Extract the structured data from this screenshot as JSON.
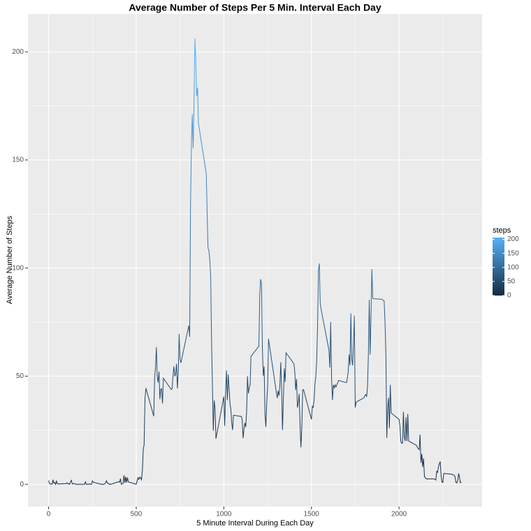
{
  "chart_data": {
    "type": "line",
    "title": "Average Number of Steps Per 5 Min. Interval Each Day",
    "x_label": "5 Minute Interval During Each Day",
    "y_label": "Average Number of Steps",
    "x": [
      0,
      5,
      10,
      15,
      20,
      25,
      30,
      35,
      40,
      45,
      50,
      55,
      100,
      105,
      110,
      115,
      120,
      125,
      130,
      135,
      140,
      145,
      150,
      155,
      200,
      205,
      210,
      215,
      220,
      225,
      230,
      235,
      240,
      245,
      250,
      255,
      300,
      305,
      310,
      315,
      320,
      325,
      330,
      335,
      340,
      345,
      350,
      355,
      400,
      405,
      410,
      415,
      420,
      425,
      430,
      435,
      440,
      445,
      450,
      455,
      500,
      505,
      510,
      515,
      520,
      525,
      530,
      535,
      540,
      545,
      550,
      555,
      600,
      605,
      610,
      615,
      620,
      625,
      630,
      635,
      640,
      645,
      650,
      655,
      700,
      705,
      710,
      715,
      720,
      725,
      730,
      735,
      740,
      745,
      750,
      755,
      800,
      805,
      810,
      815,
      820,
      825,
      830,
      835,
      840,
      845,
      850,
      855,
      900,
      905,
      910,
      915,
      920,
      925,
      930,
      935,
      940,
      945,
      950,
      955,
      1000,
      1005,
      1010,
      1015,
      1020,
      1025,
      1030,
      1035,
      1040,
      1045,
      1050,
      1055,
      1100,
      1105,
      1110,
      1115,
      1120,
      1125,
      1130,
      1135,
      1140,
      1145,
      1150,
      1155,
      1200,
      1205,
      1210,
      1215,
      1220,
      1225,
      1230,
      1235,
      1240,
      1245,
      1250,
      1255,
      1300,
      1305,
      1310,
      1315,
      1320,
      1325,
      1330,
      1335,
      1340,
      1345,
      1350,
      1355,
      1400,
      1405,
      1410,
      1415,
      1420,
      1425,
      1430,
      1435,
      1440,
      1445,
      1450,
      1455,
      1500,
      1505,
      1510,
      1515,
      1520,
      1525,
      1530,
      1535,
      1540,
      1545,
      1550,
      1555,
      1600,
      1605,
      1610,
      1615,
      1620,
      1625,
      1630,
      1635,
      1640,
      1645,
      1650,
      1655,
      1700,
      1705,
      1710,
      1715,
      1720,
      1725,
      1730,
      1735,
      1740,
      1745,
      1750,
      1755,
      1800,
      1805,
      1810,
      1815,
      1820,
      1825,
      1830,
      1835,
      1840,
      1845,
      1850,
      1855,
      1900,
      1905,
      1910,
      1915,
      1920,
      1925,
      1930,
      1935,
      1940,
      1945,
      1950,
      1955,
      2000,
      2005,
      2010,
      2015,
      2020,
      2025,
      2030,
      2035,
      2040,
      2045,
      2050,
      2055,
      2100,
      2105,
      2110,
      2115,
      2120,
      2125,
      2130,
      2135,
      2140,
      2145,
      2150,
      2155,
      2200,
      2205,
      2210,
      2215,
      2220,
      2225,
      2230,
      2235,
      2240,
      2245,
      2250,
      2255,
      2300,
      2305,
      2310,
      2315,
      2320,
      2325,
      2330,
      2335,
      2340,
      2345,
      2350,
      2355
    ],
    "values": [
      1.72,
      0.34,
      0.13,
      0.15,
      0.08,
      2.09,
      0.53,
      0.87,
      0,
      1.47,
      0.3,
      0.13,
      0.32,
      0.68,
      0.15,
      0.34,
      0,
      1.11,
      1.83,
      0.17,
      0.17,
      0.38,
      0.26,
      0,
      0,
      0,
      1.13,
      0,
      0,
      0.13,
      0,
      0.23,
      0,
      0,
      1.55,
      0.94,
      0,
      0,
      0,
      0,
      0.21,
      0.62,
      1.62,
      0.58,
      0.49,
      0.08,
      0,
      0,
      1.19,
      0.94,
      2.57,
      0,
      0.34,
      0.36,
      4.11,
      0.66,
      3.49,
      0.83,
      3.11,
      1.11,
      0,
      1.57,
      3,
      2.25,
      3.32,
      2.96,
      2.09,
      6.06,
      16.02,
      18.34,
      39.45,
      44.49,
      31.49,
      49.26,
      53.77,
      63.45,
      49.96,
      47.08,
      52.15,
      39.34,
      44.02,
      44.17,
      37.36,
      49.04,
      43.81,
      44.38,
      50.51,
      54.51,
      49.92,
      50.98,
      55.68,
      44.32,
      52.26,
      69.55,
      57.85,
      56.15,
      73.38,
      68.21,
      129.43,
      157.53,
      171.15,
      155.4,
      177.3,
      206.17,
      195.92,
      179.57,
      183.4,
      167.02,
      143.45,
      124.04,
      109.11,
      108.11,
      103.72,
      95.96,
      66.21,
      45.23,
      24.79,
      38.75,
      34.98,
      21.06,
      40.57,
      26.98,
      42.42,
      52.66,
      38.92,
      50.79,
      44.28,
      37.42,
      34.7,
      28.34,
      25.09,
      31.94,
      31.36,
      29.68,
      21.32,
      25.55,
      28.38,
      26.47,
      33.43,
      49.98,
      42.04,
      44.6,
      46.04,
      59.19,
      63.87,
      87.7,
      94.85,
      92.77,
      63.4,
      50.17,
      54.47,
      32.42,
      26.53,
      37.74,
      45.06,
      67.28,
      42.34,
      39.89,
      43.26,
      40.98,
      46.25,
      56.43,
      42.75,
      25.13,
      39.96,
      53.55,
      47.32,
      60.81,
      55.75,
      51.96,
      43.58,
      48.7,
      35.47,
      37.55,
      41.85,
      27.51,
      17.11,
      26.08,
      43.62,
      43.77,
      30.02,
      36.08,
      35.49,
      38.85,
      46.21,
      50,
      57,
      73,
      99,
      102.11,
      83.96,
      81,
      62,
      54,
      75.09,
      49,
      39,
      46,
      44.5,
      46,
      45,
      46,
      47,
      48,
      47,
      49,
      52,
      60,
      55,
      79,
      58,
      55,
      64,
      78,
      35.5,
      38,
      40,
      41,
      41.5,
      40.5,
      45,
      60,
      85.3,
      60,
      78,
      99.5,
      86,
      85.8,
      85.6,
      85.5,
      85,
      84.8,
      75,
      60,
      21.5,
      35,
      40,
      26,
      46,
      33,
      30,
      27,
      20,
      19,
      19,
      33.5,
      22,
      20,
      31,
      20,
      32.5,
      20,
      18,
      17,
      16.5,
      16,
      23,
      10,
      14,
      8,
      12,
      3.5,
      3,
      2.5,
      2.5,
      2.2,
      2,
      6,
      5.5,
      8,
      9.5,
      10.5,
      4,
      1,
      0.8,
      5,
      4.7,
      4.5,
      4.3,
      4.1,
      3.3,
      0.8,
      0.6,
      1.6,
      5,
      3.2,
      0.7,
      1.08
    ],
    "xlim": [
      -118,
      2474
    ],
    "ylim": [
      -10.3,
      217.5
    ],
    "xticks": [
      0,
      500,
      1000,
      1500,
      2000
    ],
    "yticks": [
      0,
      50,
      100,
      150,
      200
    ],
    "xminor": [
      250,
      750,
      1250,
      1750,
      2250
    ],
    "yminor": [
      25,
      75,
      125,
      175
    ],
    "grid": true,
    "color_scale": {
      "title": "steps",
      "low": "#132B43",
      "high": "#56B1F7",
      "ticks": [
        0,
        50,
        100,
        150,
        200
      ]
    }
  }
}
